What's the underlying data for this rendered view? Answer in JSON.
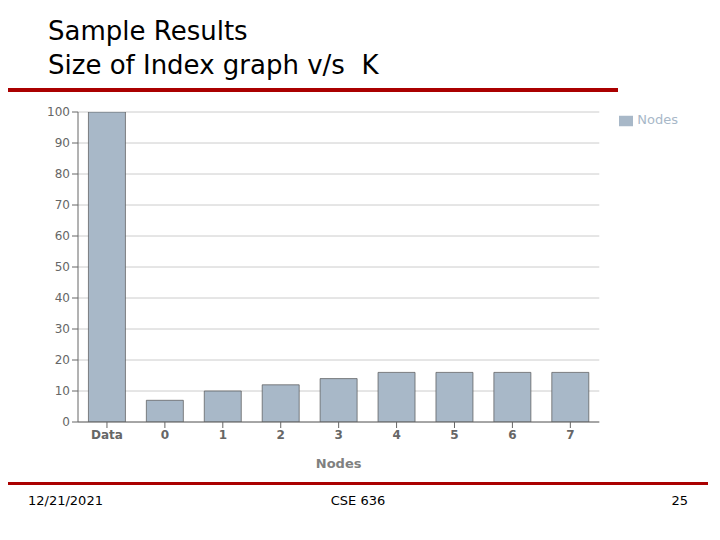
{
  "chart_data": {
    "type": "bar",
    "title": "Sample Results",
    "subtitle": "Size of Index graph v/s  K",
    "x_label": "Nodes",
    "categories": [
      "Data",
      "0",
      "1",
      "2",
      "3",
      "4",
      "5",
      "6",
      "7"
    ],
    "series": [
      {
        "name": "Nodes",
        "color": "#a8b8c8",
        "values": [
          100,
          7,
          10,
          12,
          14,
          16,
          16,
          16,
          16
        ]
      }
    ],
    "ylim": [
      0,
      100
    ],
    "yticks": [
      0,
      10,
      20,
      30,
      40,
      50,
      60,
      70,
      80,
      90,
      100
    ],
    "grid": true,
    "legend": "right",
    "annotations": [
      "12/21/2021",
      "CSE 636",
      "25"
    ]
  }
}
